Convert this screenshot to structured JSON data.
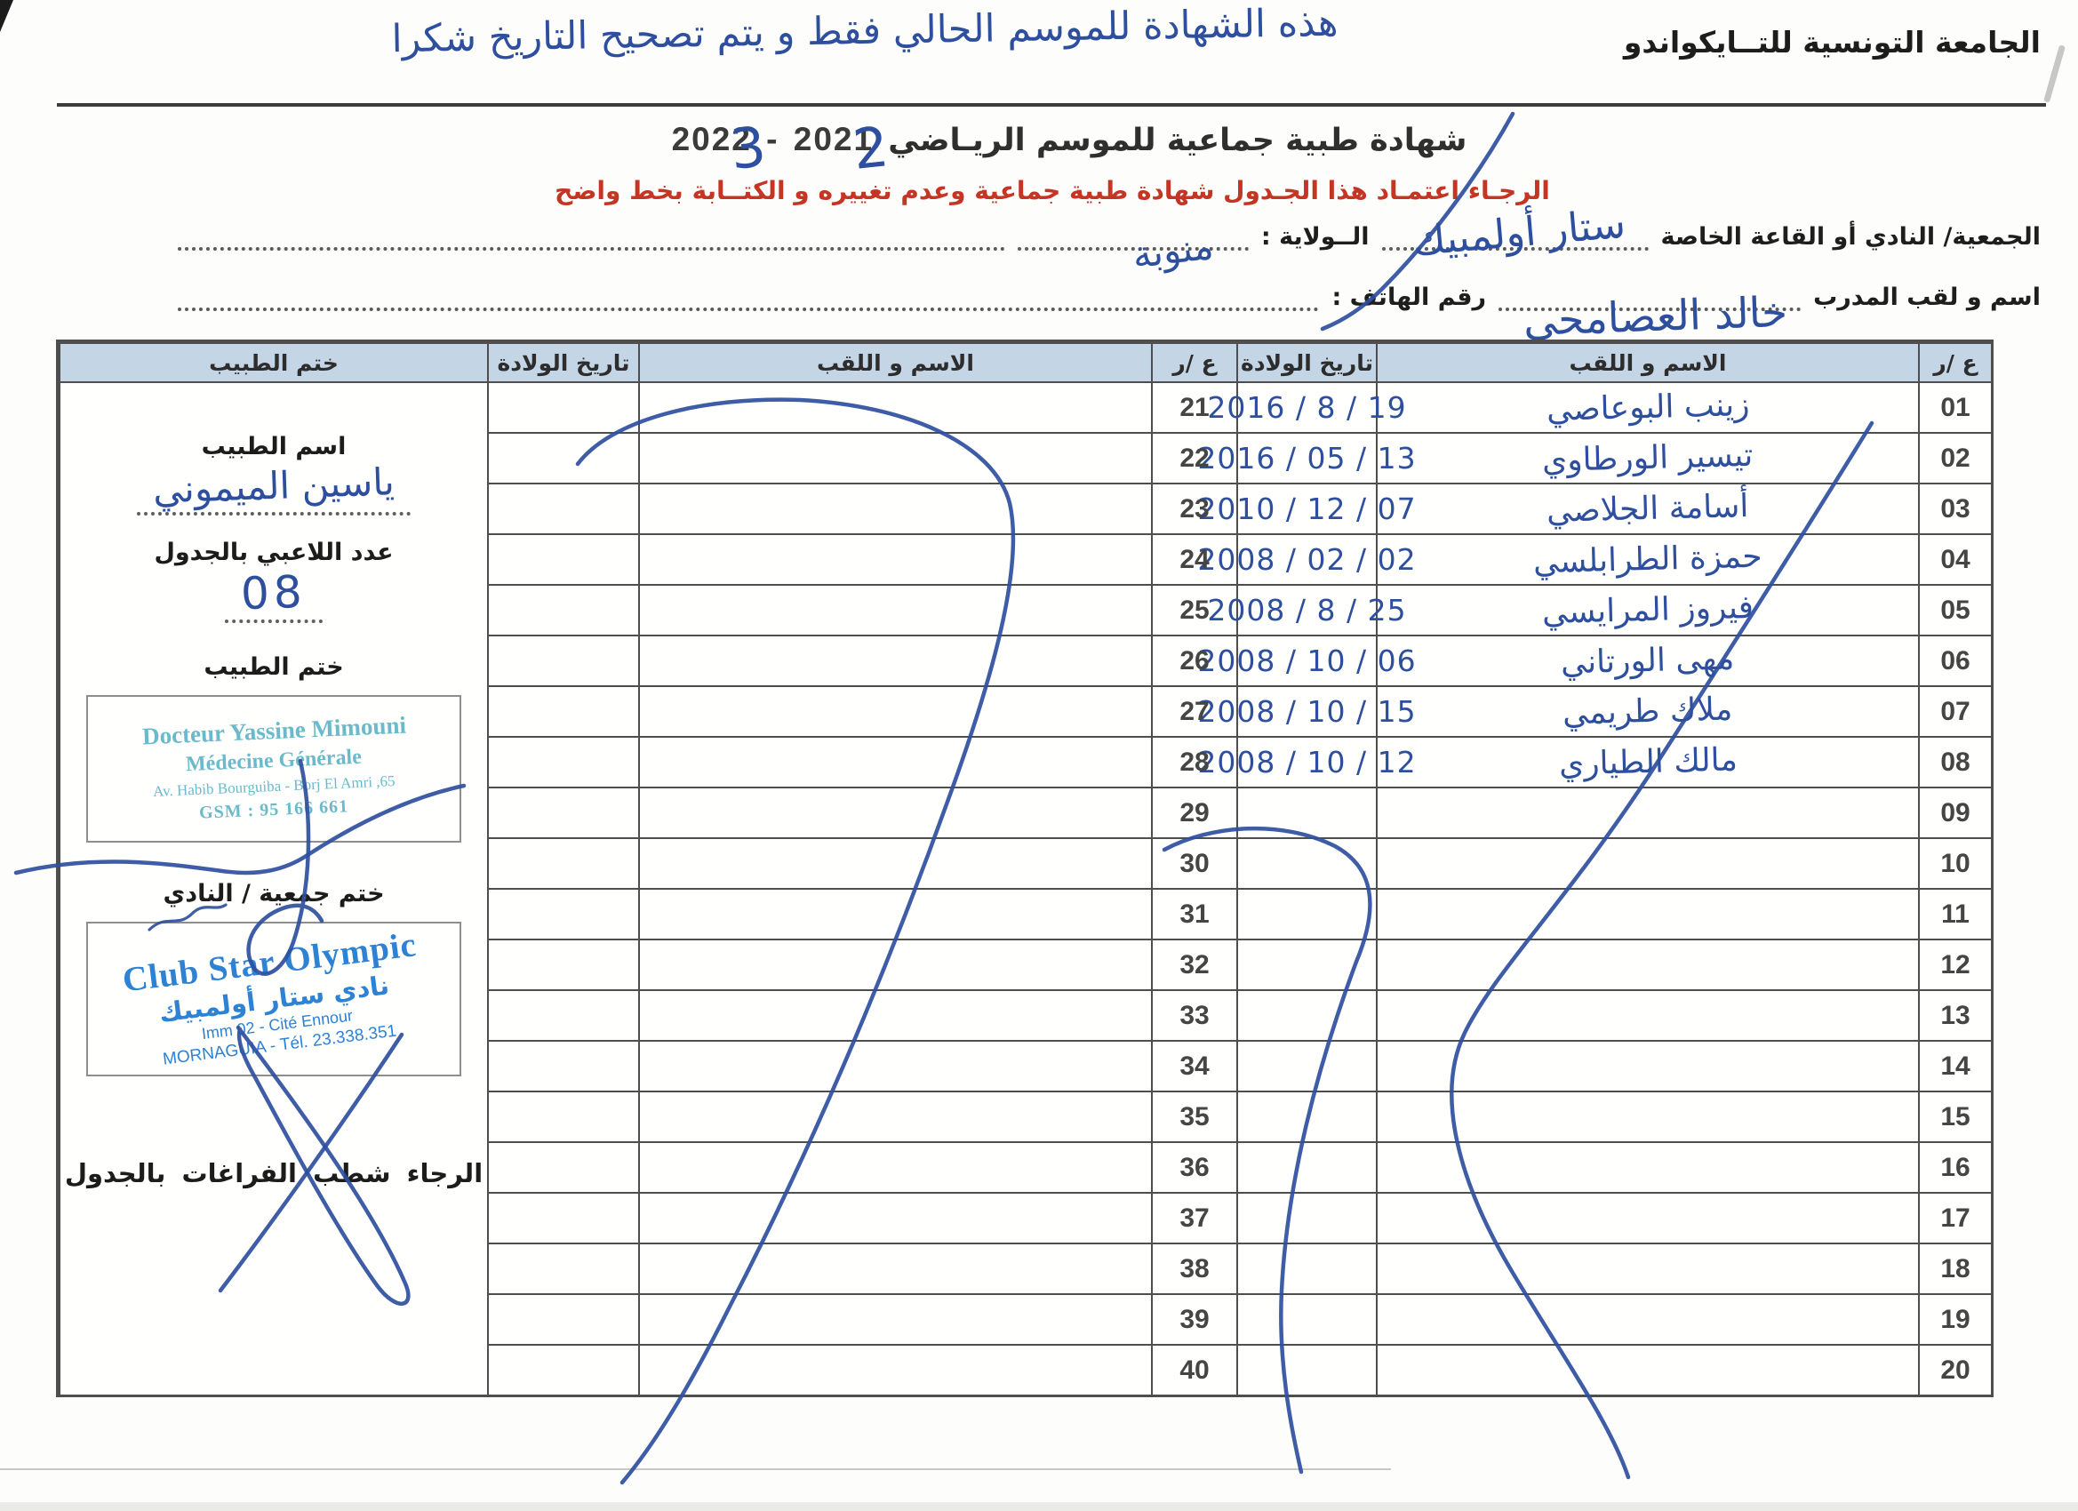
{
  "page": {
    "org_name": "الجامعة التونسية للتــايكواندو",
    "handwritten_note": "هذه الشهادة للموسم الحالي فقط و يتم تصحيح التاريخ شكرا",
    "title": "شهادة طبية جماعية  للموسم الريـاضي",
    "season": {
      "end_year_printed": "2022",
      "end_year_correction": "3",
      "separator": "-",
      "start_year_printed": "2021",
      "start_year_correction": "2"
    },
    "red_instruction": "الرجـاء اعتمـاد هذا الجـدول  شهادة طبية جماعية وعدم تغييره و الكتــابة بخط واضح",
    "fields": {
      "club_label": "الجمعية/ النادي أو القاعة الخاصة",
      "club_value": "ستار أولمبيك",
      "wilaya_label": "الــولاية :",
      "wilaya_value": "منوبة",
      "coach_label": "اسم و لقب المدرب",
      "coach_value": "خالد العصامحي",
      "phone_label": "رقم الهاتف :",
      "phone_value": ""
    }
  },
  "table": {
    "headers": {
      "num": "ع /ر",
      "name": "الاسم و اللقب",
      "dob": "تاريخ الولادة",
      "doctor_stamp": "ختم الطبيب"
    },
    "rows_right": [
      {
        "num": "01",
        "name": "زينب البوعاصي",
        "dob": "2016 / 8 / 19"
      },
      {
        "num": "02",
        "name": "تيسير الورطاوي",
        "dob": "2016 / 05 / 13"
      },
      {
        "num": "03",
        "name": "أسامة الجلاصي",
        "dob": "2010 / 12 / 07"
      },
      {
        "num": "04",
        "name": "حمزة الطرابلسي",
        "dob": "2008 / 02 / 02"
      },
      {
        "num": "05",
        "name": "فيروز المرايسي",
        "dob": "2008 / 8 / 25"
      },
      {
        "num": "06",
        "name": "مهى الورتاني",
        "dob": "2008 / 10 / 06"
      },
      {
        "num": "07",
        "name": "ملاك طريمي",
        "dob": "2008 / 10 / 15"
      },
      {
        "num": "08",
        "name": "مالك الطياري",
        "dob": "2008 / 10 / 12"
      },
      {
        "num": "09",
        "name": "",
        "dob": ""
      },
      {
        "num": "10",
        "name": "",
        "dob": ""
      },
      {
        "num": "11",
        "name": "",
        "dob": ""
      },
      {
        "num": "12",
        "name": "",
        "dob": ""
      },
      {
        "num": "13",
        "name": "",
        "dob": ""
      },
      {
        "num": "14",
        "name": "",
        "dob": ""
      },
      {
        "num": "15",
        "name": "",
        "dob": ""
      },
      {
        "num": "16",
        "name": "",
        "dob": ""
      },
      {
        "num": "17",
        "name": "",
        "dob": ""
      },
      {
        "num": "18",
        "name": "",
        "dob": ""
      },
      {
        "num": "19",
        "name": "",
        "dob": ""
      },
      {
        "num": "20",
        "name": "",
        "dob": ""
      }
    ],
    "rows_left": [
      {
        "num": "21",
        "name": "",
        "dob": ""
      },
      {
        "num": "22",
        "name": "",
        "dob": ""
      },
      {
        "num": "23",
        "name": "",
        "dob": ""
      },
      {
        "num": "24",
        "name": "",
        "dob": ""
      },
      {
        "num": "25",
        "name": "",
        "dob": ""
      },
      {
        "num": "26",
        "name": "",
        "dob": ""
      },
      {
        "num": "27",
        "name": "",
        "dob": ""
      },
      {
        "num": "28",
        "name": "",
        "dob": ""
      },
      {
        "num": "29",
        "name": "",
        "dob": ""
      },
      {
        "num": "30",
        "name": "",
        "dob": ""
      },
      {
        "num": "31",
        "name": "",
        "dob": ""
      },
      {
        "num": "32",
        "name": "",
        "dob": ""
      },
      {
        "num": "33",
        "name": "",
        "dob": ""
      },
      {
        "num": "34",
        "name": "",
        "dob": ""
      },
      {
        "num": "35",
        "name": "",
        "dob": ""
      },
      {
        "num": "36",
        "name": "",
        "dob": ""
      },
      {
        "num": "37",
        "name": "",
        "dob": ""
      },
      {
        "num": "38",
        "name": "",
        "dob": ""
      },
      {
        "num": "39",
        "name": "",
        "dob": ""
      },
      {
        "num": "40",
        "name": "",
        "dob": ""
      }
    ]
  },
  "doctor_panel": {
    "doctor_name_label": "اسم الطبيب",
    "doctor_name_value": "ياسين الميموني",
    "players_count_label": "عدد اللاعبي بالجدول",
    "players_count_value": "08",
    "doctor_stamp_label": "ختم الطبيب",
    "doctor_stamp": {
      "line1": "Docteur Yassine Mimouni",
      "line2": "Médecine Générale",
      "line3": "65, Av. Habib Bourguiba - Borj El Amri",
      "line4": "GSM : 95 166 661"
    },
    "club_stamp_label": "ختم جمعية / النادي",
    "club_stamp": {
      "line1": "Club Star Olympic",
      "line2": "نادي ستار أولمبيك",
      "line3": "Imm 02 - Cité Ennour",
      "line4": "MORNAGUIA - Tél. 23.338.351"
    },
    "footer_note": "الرجاء شطب  الفراغات بالجدول"
  },
  "colors": {
    "ink": "#2e4f9e",
    "stamp_teal": "#5ab3c6",
    "stamp_blue": "#2e82d4",
    "red": "#c43524",
    "header_bg": "#c4d6e5",
    "line": "#4e4e4e"
  }
}
